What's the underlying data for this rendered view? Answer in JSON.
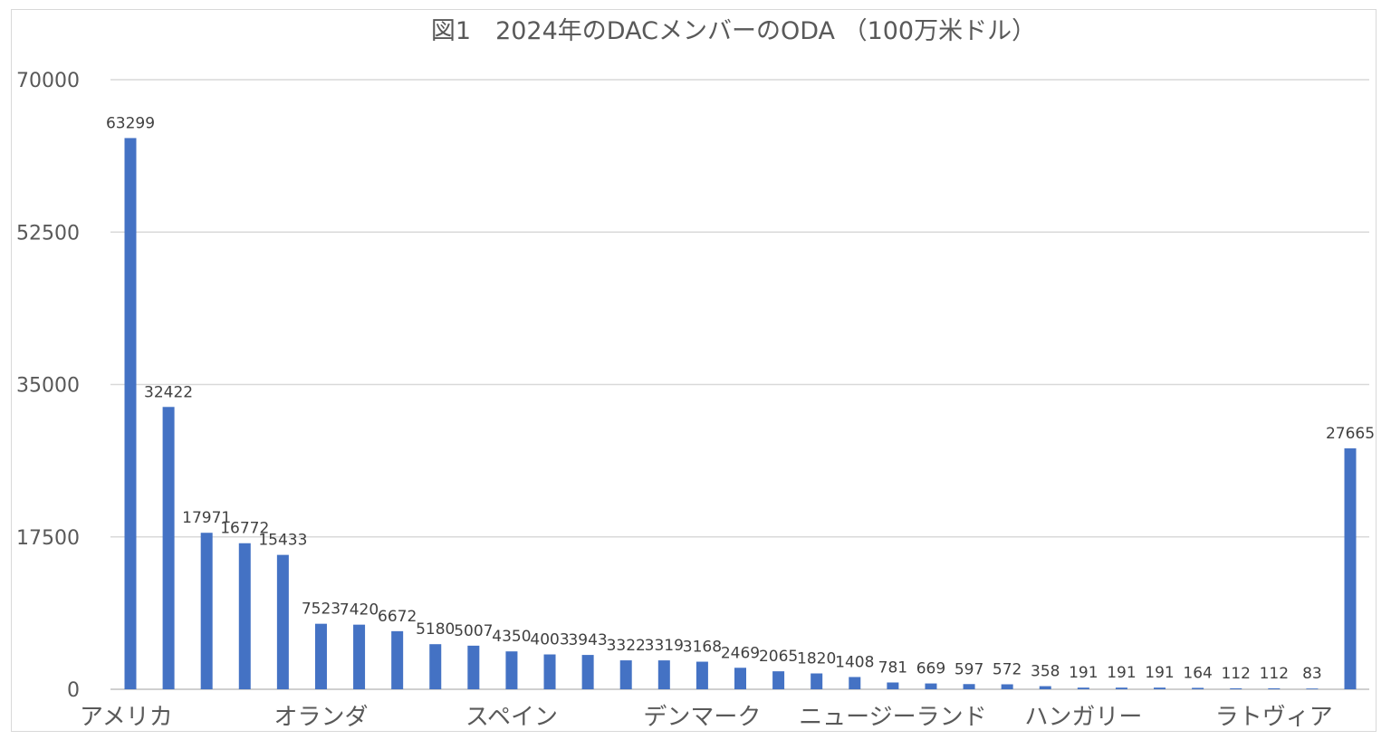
{
  "chart_data": {
    "type": "bar",
    "title": "図1　2024年のDACメンバーのODA （100万米ドル）",
    "xlabel": "",
    "ylabel": "",
    "ylim": [
      0,
      70000
    ],
    "yticks": [
      0,
      17500,
      35000,
      52500,
      70000
    ],
    "grid": true,
    "legend": "none",
    "bar_color": "#4472C4",
    "categories": [
      "アメリカ",
      "",
      "",
      "",
      "",
      "オランダ",
      "",
      "",
      "",
      "",
      "スペイン",
      "",
      "",
      "",
      "",
      "デンマーク",
      "",
      "",
      "",
      "",
      "ニュージーランド",
      "",
      "",
      "",
      "",
      "ハンガリー",
      "",
      "",
      "",
      "",
      "ラトヴィア",
      "",
      ""
    ],
    "values": [
      63299,
      32422,
      17971,
      16772,
      15433,
      7523,
      7420,
      6672,
      5180,
      5007,
      4350,
      4003,
      3943,
      3322,
      3319,
      3168,
      2469,
      2065,
      1820,
      1408,
      781,
      669,
      597,
      572,
      358,
      191,
      191,
      191,
      164,
      112,
      112,
      83,
      27665
    ]
  }
}
